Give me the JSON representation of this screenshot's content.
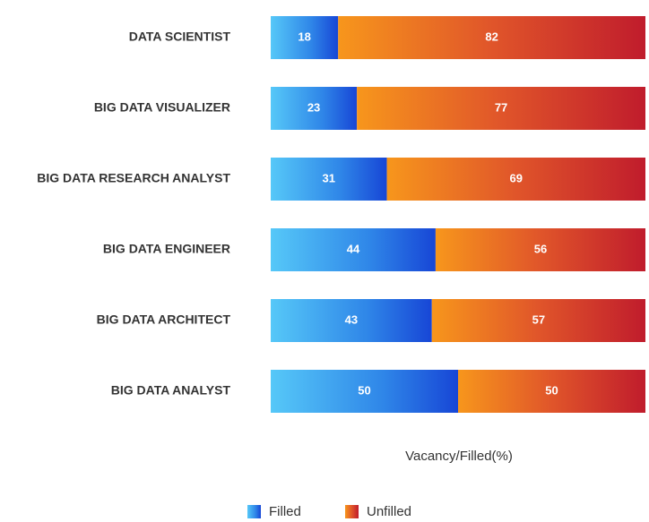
{
  "chart_data": {
    "type": "stacked-bar-horizontal",
    "categories": [
      "DATA SCIENTIST",
      "BIG DATA VISUALIZER",
      "BIG DATA RESEARCH ANALYST",
      "BIG DATA ENGINEER",
      "BIG DATA ARCHITECT",
      "BIG DATA ANALYST"
    ],
    "series": [
      {
        "name": "Filled",
        "color": "#2f86e8",
        "values": [
          18,
          23,
          31,
          44,
          43,
          50
        ]
      },
      {
        "name": "Unfilled",
        "color": "#e0552a",
        "values": [
          82,
          77,
          69,
          56,
          57,
          50
        ]
      }
    ],
    "xlim": [
      0,
      100
    ],
    "x_label": "Vacancy/Filled(%)"
  }
}
